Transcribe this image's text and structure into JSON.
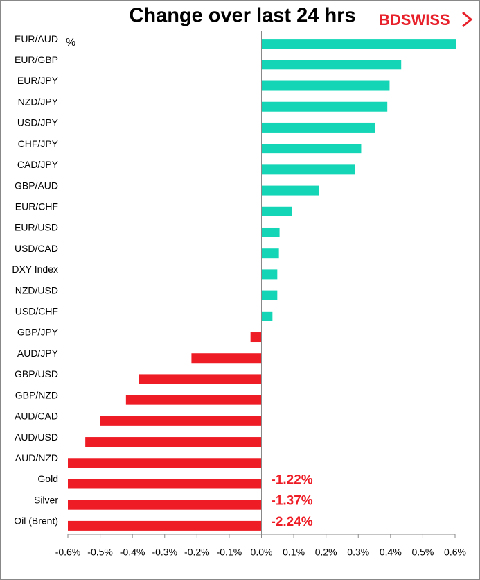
{
  "chart_data": {
    "type": "hbar",
    "title": "Change over last 24 hrs",
    "brand": "BDSWISS",
    "unit_label": "%",
    "categories": [
      "EUR/AUD",
      "EUR/GBP",
      "EUR/JPY",
      "NZD/JPY",
      "USD/JPY",
      "CHF/JPY",
      "CAD/JPY",
      "GBP/AUD",
      "EUR/CHF",
      "EUR/USD",
      "USD/CAD",
      "DXY Index",
      "NZD/USD",
      "USD/CHF",
      "GBP/JPY",
      "AUD/JPY",
      "GBP/USD",
      "GBP/NZD",
      "AUD/CAD",
      "AUD/USD",
      "AUD/NZD",
      "Gold",
      "Silver",
      "Oil (Brent)"
    ],
    "values": [
      0.605,
      0.433,
      0.397,
      0.39,
      0.352,
      0.309,
      0.29,
      0.178,
      0.094,
      0.056,
      0.054,
      0.049,
      0.049,
      0.034,
      -0.034,
      -0.217,
      -0.38,
      -0.42,
      -0.5,
      -0.546,
      -0.6,
      -1.22,
      -1.37,
      -2.24
    ],
    "value_labels": [
      null,
      null,
      null,
      null,
      null,
      null,
      null,
      null,
      null,
      null,
      null,
      null,
      null,
      null,
      null,
      null,
      null,
      null,
      null,
      null,
      null,
      "-1.22%",
      "-1.37%",
      "-2.24%"
    ],
    "color_positive": "#14d6b6",
    "color_negative": "#ee1c25",
    "xlim": [
      -0.6,
      0.6
    ],
    "xticks": [
      {
        "value": -0.6,
        "label": "-0.6%"
      },
      {
        "value": -0.5,
        "label": "-0.5%"
      },
      {
        "value": -0.4,
        "label": "-0.4%"
      },
      {
        "value": -0.3,
        "label": "-0.3%"
      },
      {
        "value": -0.2,
        "label": "-0.2%"
      },
      {
        "value": -0.1,
        "label": "-0.1%"
      },
      {
        "value": 0,
        "label": "0.0%"
      },
      {
        "value": 0.1,
        "label": "0.1%"
      },
      {
        "value": 0.2,
        "label": "0.2%"
      },
      {
        "value": 0.3,
        "label": "0.3%"
      },
      {
        "value": 0.4,
        "label": "0.4%"
      },
      {
        "value": 0.5,
        "label": "0.5%"
      },
      {
        "value": 0.6,
        "label": "0.6%"
      }
    ]
  }
}
